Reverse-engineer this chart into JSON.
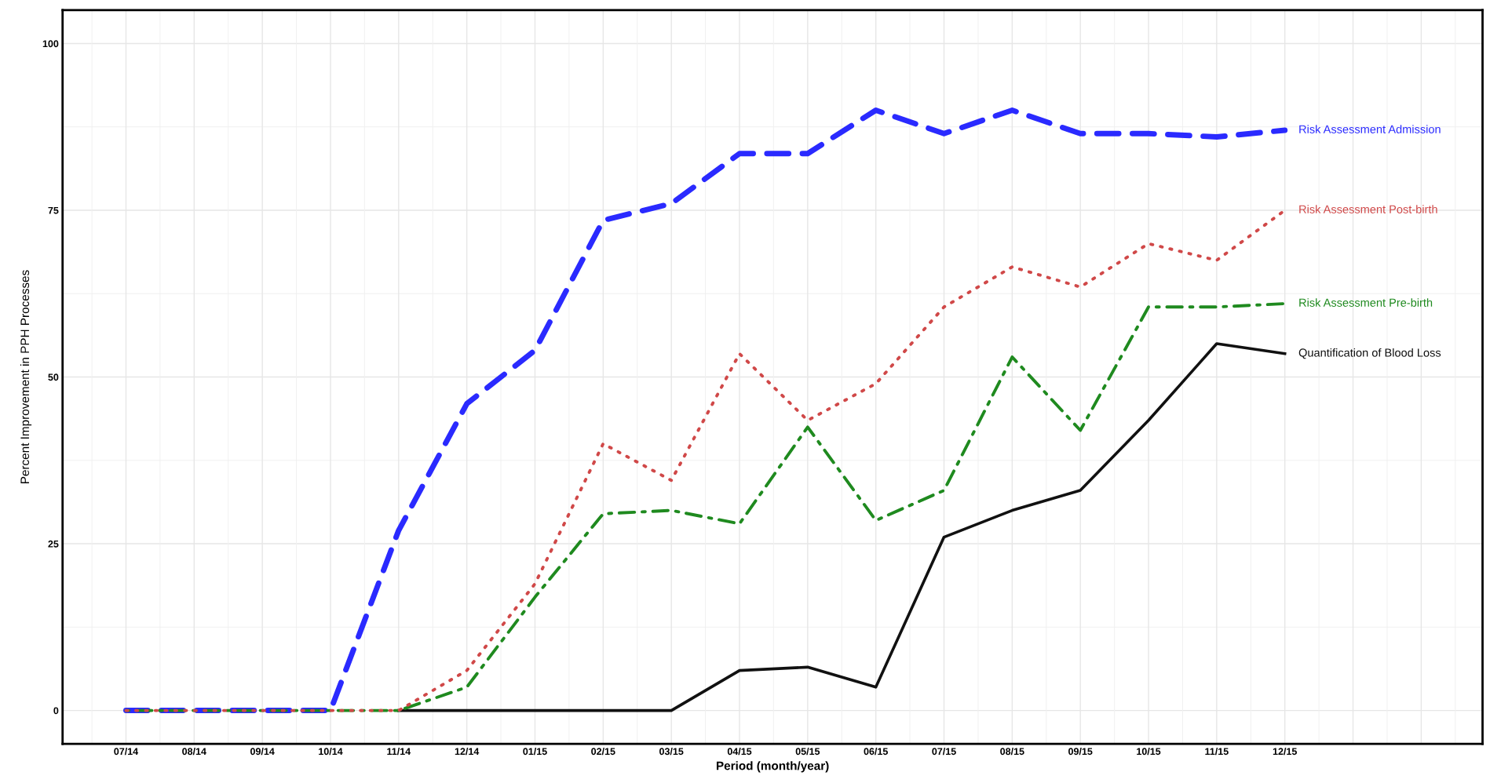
{
  "chart_data": {
    "type": "line",
    "xlabel": "Period (month/year)",
    "ylabel": "Percent Improvement in PPH Processes",
    "categories": [
      "07/14",
      "08/14",
      "09/14",
      "10/14",
      "11/14",
      "12/14",
      "01/15",
      "02/15",
      "03/15",
      "04/15",
      "05/15",
      "06/15",
      "07/15",
      "08/15",
      "09/15",
      "10/15",
      "11/15",
      "12/15"
    ],
    "series": [
      {
        "name": "Risk Assessment Admission",
        "color": "#2a2aff",
        "line_style": "dashed",
        "values": [
          0,
          0,
          0,
          0,
          27,
          46,
          54,
          73.5,
          76,
          83.5,
          83.5,
          90,
          86.5,
          90,
          86.5,
          86.5,
          86,
          87
        ]
      },
      {
        "name": "Risk Assessment Post-birth",
        "color": "#d04848",
        "line_style": "dotted",
        "values": [
          0,
          0,
          0,
          0,
          0,
          6,
          19,
          40,
          34.5,
          53.5,
          43.5,
          49,
          60.5,
          66.5,
          63.5,
          70,
          67.5,
          75
        ]
      },
      {
        "name": "Risk Assessment Pre-birth",
        "color": "#1f8a1f",
        "line_style": "dashdot",
        "values": [
          0,
          0,
          0,
          0,
          0,
          3.5,
          17,
          29.5,
          30,
          28,
          42.5,
          28.5,
          33,
          53,
          42,
          60.5,
          60.5,
          61
        ]
      },
      {
        "name": "Quantification of Blood Loss",
        "color": "#111111",
        "line_style": "solid",
        "values": [
          null,
          null,
          null,
          null,
          0,
          0,
          0,
          0,
          0,
          6,
          6.5,
          3.5,
          26,
          30,
          33,
          43.5,
          55,
          53.5
        ]
      }
    ],
    "ylim": [
      -5,
      105
    ],
    "yticks": [
      0,
      25,
      50,
      75,
      100
    ],
    "grid": true,
    "marker": "none"
  }
}
